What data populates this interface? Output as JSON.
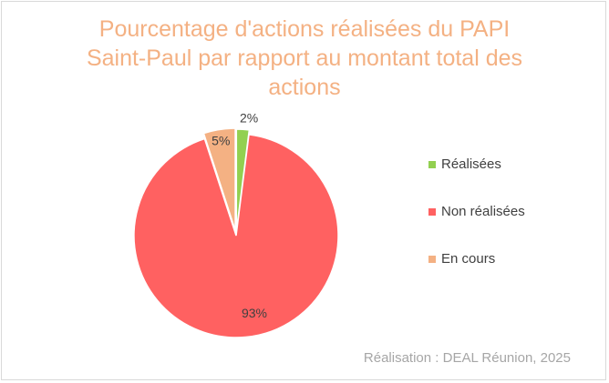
{
  "chart_data": {
    "type": "pie",
    "title_lines": [
      "Pourcentage d'actions réalisées du PAPI",
      "Saint-Paul par rapport au montant total des",
      "actions"
    ],
    "categories": [
      "Réalisées",
      "Non réalisées",
      "En cours"
    ],
    "values": [
      2,
      93,
      5
    ],
    "value_labels": [
      "2%",
      "93%",
      "5%"
    ],
    "colors": [
      "#92d050",
      "#ff6161",
      "#f4b183"
    ],
    "legend_position": "right",
    "start": "top, clockwise, exploded slices"
  },
  "source": "Réalisation : DEAL Réunion, 2025"
}
